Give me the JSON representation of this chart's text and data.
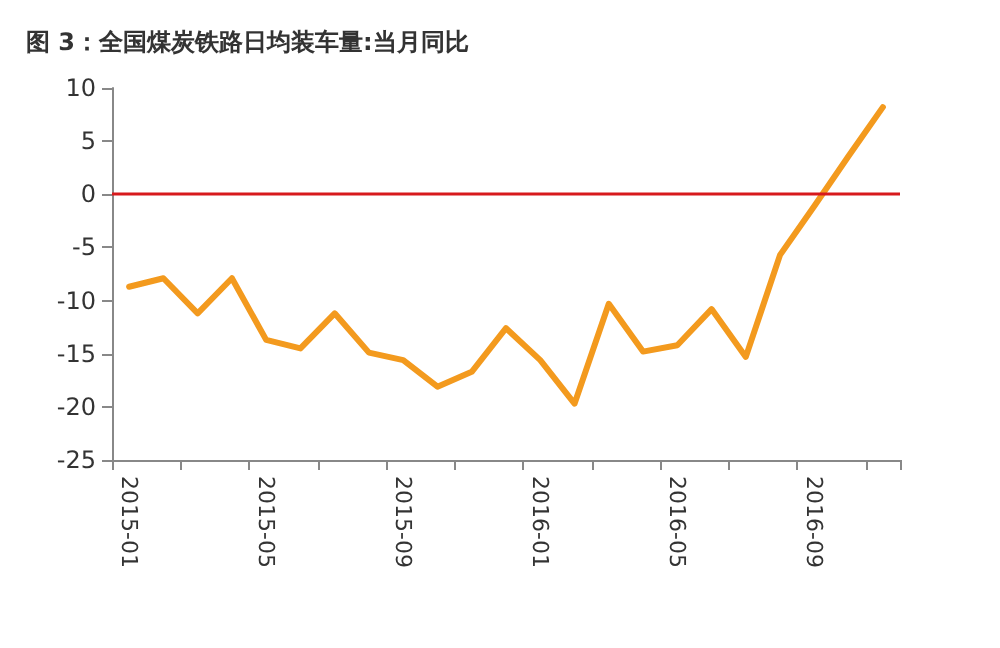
{
  "chart_data": {
    "type": "line",
    "title": "图 3：全国煤炭铁路日均装车量:当月同比",
    "categories": [
      "2015-01",
      null,
      null,
      null,
      "2015-05",
      null,
      null,
      null,
      "2015-09",
      null,
      null,
      null,
      "2016-01",
      null,
      null,
      null,
      "2016-05",
      null,
      null,
      null,
      "2016-09",
      null,
      null
    ],
    "series": [
      {
        "color": "#f39a1e",
        "values": [
          -8.7,
          -7.9,
          -11.2,
          -7.9,
          -13.7,
          -14.5,
          -11.2,
          -14.9,
          -15.6,
          -18.1,
          -16.7,
          -12.6,
          -15.6,
          -19.7,
          -10.3,
          -14.8,
          -14.2,
          -10.8,
          -15.3,
          -5.7,
          -1.1,
          3.6,
          8.2
        ]
      }
    ],
    "ylim": [
      -25,
      10
    ],
    "yticks": [
      -25,
      -20,
      -15,
      -10,
      -5,
      0,
      5,
      10
    ],
    "ref_lines": [
      {
        "axis": "y",
        "value": 0,
        "color": "#d7191c"
      }
    ],
    "grid": false,
    "marker": "none",
    "line_style": "solid"
  }
}
